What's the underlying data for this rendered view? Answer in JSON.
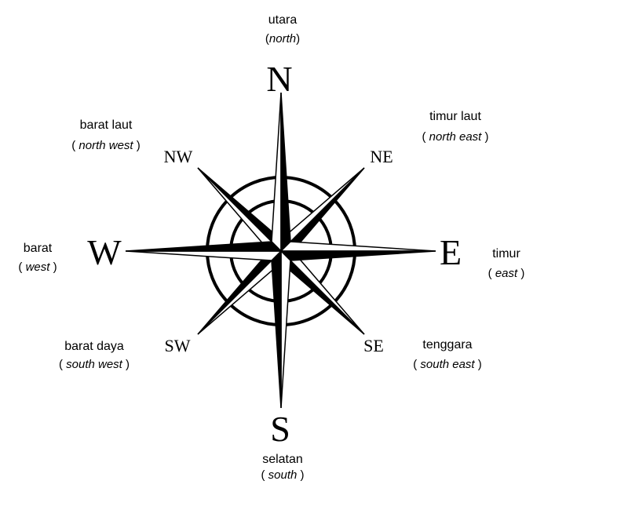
{
  "letters": {
    "n": "N",
    "s": "S",
    "e": "E",
    "w": "W",
    "ne": "NE",
    "nw": "NW",
    "se": "SE",
    "sw": "SW"
  },
  "labels": {
    "n": {
      "name": "utara",
      "english": "north"
    },
    "ne": {
      "name": "timur laut",
      "english": "north east"
    },
    "e": {
      "name": "timur",
      "english": "east"
    },
    "se": {
      "name": "tenggara",
      "english": "south east"
    },
    "s": {
      "name": "selatan",
      "english": "south"
    },
    "sw": {
      "name": "barat daya",
      "english": "south west"
    },
    "w": {
      "name": "barat",
      "english": "west"
    },
    "nw": {
      "name": "barat laut",
      "english": "north west"
    }
  }
}
